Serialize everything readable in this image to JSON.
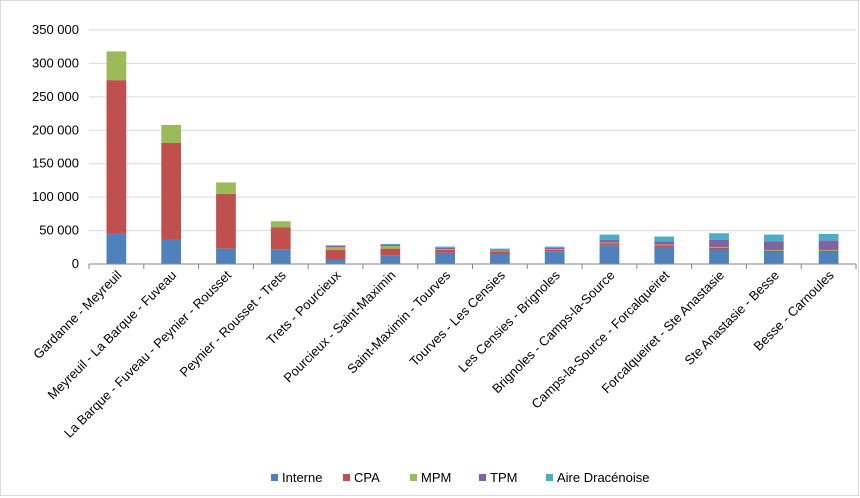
{
  "chart_data": {
    "type": "bar",
    "stacked": true,
    "title": "",
    "xlabel": "",
    "ylabel": "",
    "ylim": [
      0,
      350000
    ],
    "y_ticks": [
      0,
      50000,
      100000,
      150000,
      200000,
      250000,
      300000,
      350000
    ],
    "y_tick_labels": [
      "0",
      "50 000",
      "100 000",
      "150 000",
      "200 000",
      "250 000",
      "300 000",
      "350 000"
    ],
    "grid": "horizontal",
    "legend_position": "bottom",
    "categories": [
      "Gardanne - Meyreuil",
      "Meyreuil - La Barque - Fuveau",
      "La Barque - Fuveau - Peynier - Rousset",
      "Peynier - Rousset - Trets",
      "Trets - Pourcieux",
      "Pourcieux - Saint-Maximin",
      "Saint-Maximin - Tourves",
      "Tourves - Les Censies",
      "Les Censies - Brignoles",
      "Brignoles - Camps-la-Source",
      "Camps-la-Source - Forcalqueiret",
      "Forcalqueiret - Ste Anastasie",
      "Ste Anastasie - Besse",
      "Besse - Carnoules"
    ],
    "series": [
      {
        "name": "Interne",
        "color": "#4f81bd",
        "values": [
          45000,
          36000,
          23000,
          22000,
          6000,
          13000,
          17000,
          15000,
          19000,
          28000,
          24000,
          21000,
          18000,
          18000
        ]
      },
      {
        "name": "CPA",
        "color": "#c0504d",
        "values": [
          230000,
          145000,
          82000,
          33000,
          15000,
          10000,
          4000,
          4000,
          2000,
          3000,
          4000,
          3000,
          2000,
          2000
        ]
      },
      {
        "name": "MPM",
        "color": "#9bbb59",
        "values": [
          43000,
          27000,
          17000,
          9000,
          4000,
          4000,
          1000,
          1000,
          1000,
          1000,
          1000,
          1000,
          1000,
          1000
        ]
      },
      {
        "name": "TPM",
        "color": "#8064a2",
        "values": [
          0,
          0,
          0,
          0,
          2000,
          2000,
          2000,
          2000,
          2000,
          4000,
          5000,
          11000,
          13000,
          14000
        ]
      },
      {
        "name": "Aire Dracénoise",
        "color": "#4bacc6",
        "values": [
          0,
          0,
          0,
          0,
          1000,
          1000,
          2000,
          1000,
          2000,
          8000,
          7000,
          10000,
          10000,
          10000
        ]
      }
    ]
  }
}
